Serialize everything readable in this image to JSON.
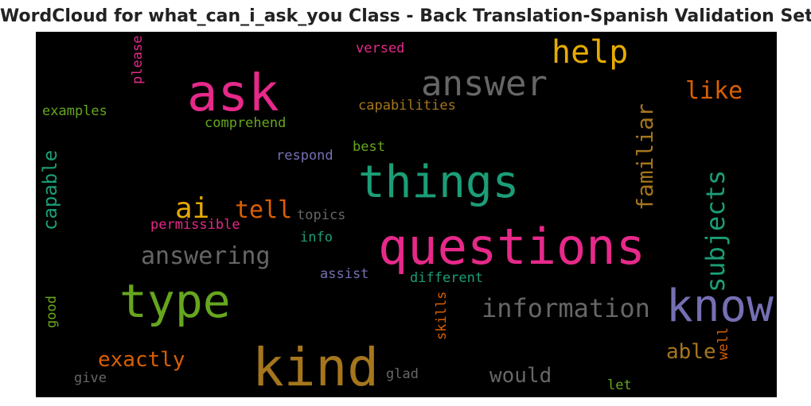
{
  "title": "WordCloud for what_can_i_ask_you Class - Back Translation-Spanish Validation Set",
  "words": {
    "ask": {
      "text": "ask",
      "color": "#e7298a"
    },
    "answer": {
      "text": "answer",
      "color": "#666666"
    },
    "help": {
      "text": "help",
      "color": "#e6ab02"
    },
    "like": {
      "text": "like",
      "color": "#d95f02"
    },
    "versed": {
      "text": "versed",
      "color": "#e7298a"
    },
    "please": {
      "text": "please",
      "color": "#e7298a"
    },
    "examples": {
      "text": "examples",
      "color": "#66a61e"
    },
    "capabilities": {
      "text": "capabilities",
      "color": "#a6761d"
    },
    "comprehend": {
      "text": "comprehend",
      "color": "#66a61e"
    },
    "familiar": {
      "text": "familiar",
      "color": "#a6761d"
    },
    "respond": {
      "text": "respond",
      "color": "#7570b3"
    },
    "best": {
      "text": "best",
      "color": "#66a61e"
    },
    "things": {
      "text": "things",
      "color": "#1b9e77"
    },
    "capable": {
      "text": "capable",
      "color": "#1b9e77"
    },
    "subjects": {
      "text": "subjects",
      "color": "#1b9e77"
    },
    "ai": {
      "text": "ai",
      "color": "#e6ab02"
    },
    "tell": {
      "text": "tell",
      "color": "#d95f02"
    },
    "topics": {
      "text": "topics",
      "color": "#666666"
    },
    "permissible": {
      "text": "permissible",
      "color": "#e7298a"
    },
    "info": {
      "text": "info",
      "color": "#1b9e77"
    },
    "questions": {
      "text": "questions",
      "color": "#e7298a"
    },
    "answering": {
      "text": "answering",
      "color": "#666666"
    },
    "assist": {
      "text": "assist",
      "color": "#7570b3"
    },
    "different": {
      "text": "different",
      "color": "#1b9e77"
    },
    "type": {
      "text": "type",
      "color": "#66a61e"
    },
    "good": {
      "text": "good",
      "color": "#66a61e"
    },
    "skills": {
      "text": "skills",
      "color": "#d95f02"
    },
    "information": {
      "text": "information",
      "color": "#666666"
    },
    "know": {
      "text": "know",
      "color": "#7570b3"
    },
    "exactly": {
      "text": "exactly",
      "color": "#d95f02"
    },
    "kind": {
      "text": "kind",
      "color": "#a6761d"
    },
    "able": {
      "text": "able",
      "color": "#a6761d"
    },
    "well": {
      "text": "well",
      "color": "#d95f02"
    },
    "would": {
      "text": "would",
      "color": "#666666"
    },
    "give": {
      "text": "give",
      "color": "#666666"
    },
    "glad": {
      "text": "glad",
      "color": "#666666"
    },
    "let": {
      "text": "let",
      "color": "#66a61e"
    }
  }
}
